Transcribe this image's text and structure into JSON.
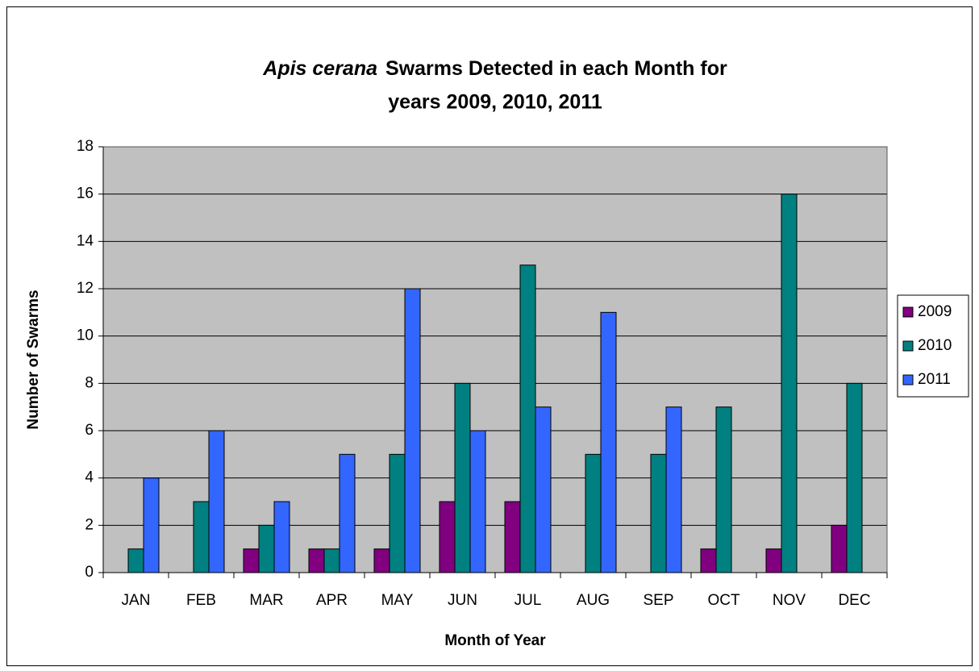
{
  "chart_data": {
    "type": "bar",
    "title": [
      "Apis cerana",
      "Swarms Detected in each Month for",
      "years 2009, 2010, 2011"
    ],
    "x_label": "Month of Year",
    "y_label": "Number of Swarms",
    "categories": [
      "JAN",
      "FEB",
      "MAR",
      "APR",
      "MAY",
      "JUN",
      "JUL",
      "AUG",
      "SEP",
      "OCT",
      "NOV",
      "DEC"
    ],
    "series": [
      {
        "name": "2009",
        "color": "#800080",
        "values": [
          0,
          0,
          1,
          1,
          1,
          3,
          3,
          0,
          0,
          1,
          1,
          2
        ]
      },
      {
        "name": "2010",
        "color": "#008080",
        "values": [
          1,
          3,
          2,
          1,
          5,
          8,
          13,
          5,
          5,
          7,
          16,
          8
        ]
      },
      {
        "name": "2011",
        "color": "#3366ff",
        "values": [
          4,
          6,
          3,
          5,
          12,
          6,
          7,
          11,
          7,
          0,
          0,
          0
        ]
      }
    ],
    "ylim": [
      0,
      18
    ],
    "yticks": [
      0,
      2,
      4,
      6,
      8,
      10,
      12,
      14,
      16,
      18
    ],
    "grid": true,
    "legend": "right",
    "plot_background": "#c0c0c0"
  }
}
